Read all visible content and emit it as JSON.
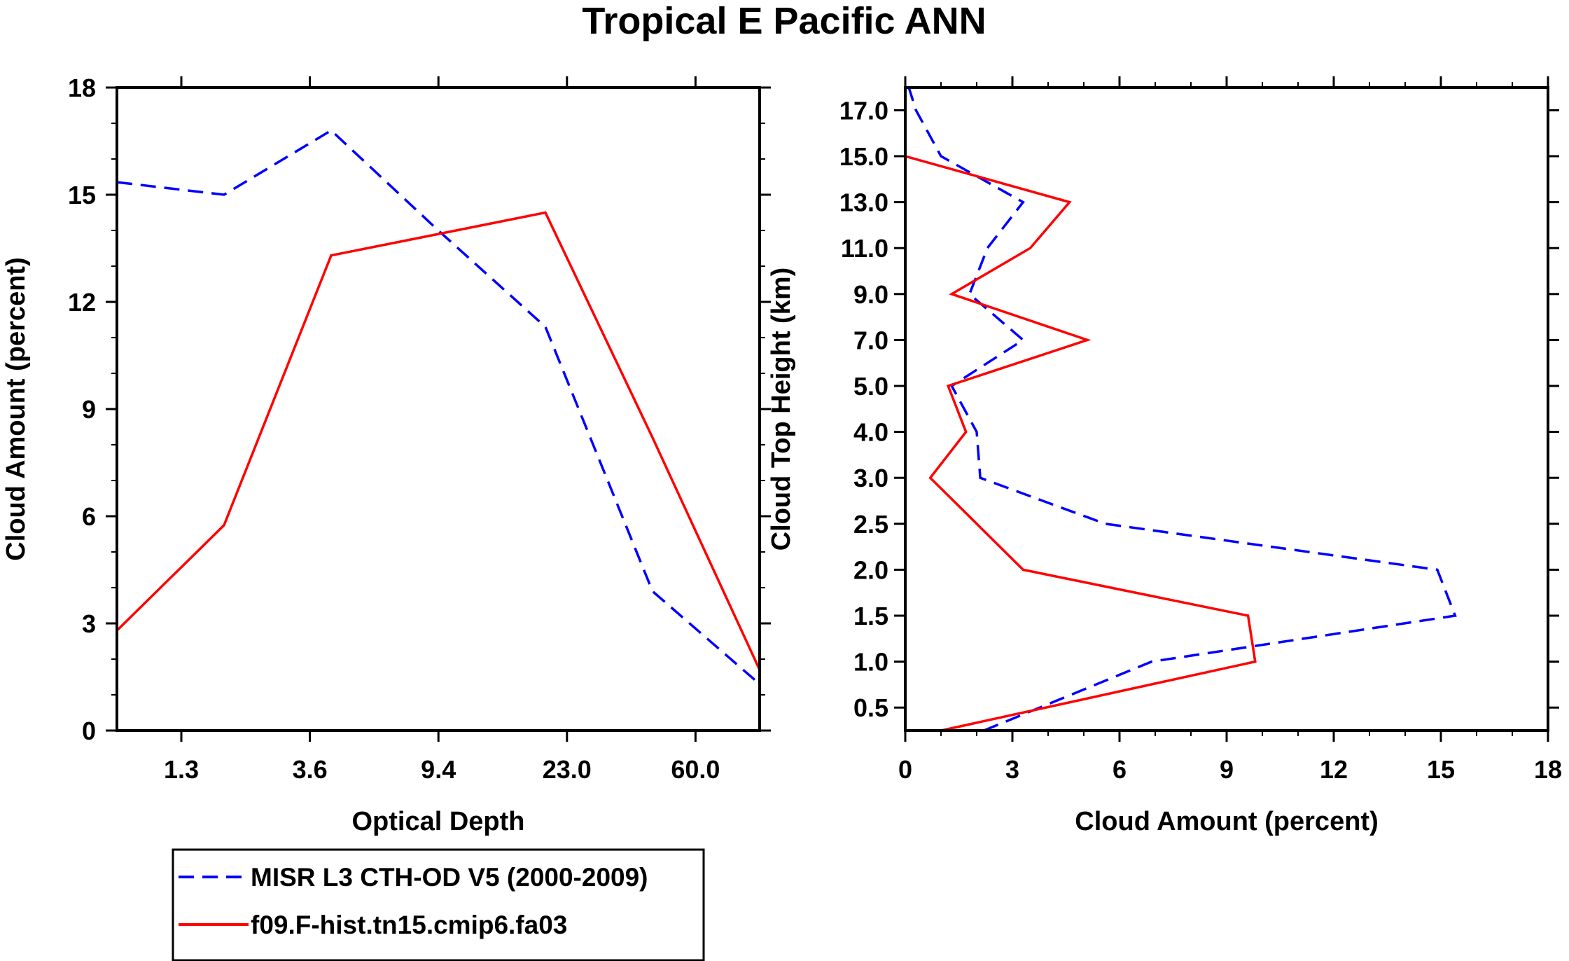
{
  "chart_data": [
    {
      "type": "line",
      "title": "Tropical E Pacific ANN",
      "xlabel": "Optical Depth",
      "ylabel": "Cloud Amount (percent)",
      "ylim": [
        0,
        18
      ],
      "yticks": [
        "0",
        "3",
        "6",
        "9",
        "12",
        "15",
        "18"
      ],
      "xticks": [
        "1.3",
        "3.6",
        "9.4",
        "23.0",
        "60.0"
      ],
      "x_bins": 7,
      "series": [
        {
          "name": "MISR L3 CTH-OD V5 (2000-2009)",
          "color": "#0000ff",
          "dash": "dashed",
          "x": [
            0,
            1,
            2,
            3,
            4,
            5,
            6
          ],
          "values": [
            15.35,
            15.0,
            16.8,
            14.0,
            11.3,
            3.9,
            1.3
          ]
        },
        {
          "name": "f09.F-hist.tn15.cmip6.fa03",
          "color": "#ff0000",
          "dash": "solid",
          "x": [
            0,
            1,
            2,
            3,
            4,
            5,
            6
          ],
          "values": [
            2.8,
            5.75,
            13.3,
            13.9,
            14.5,
            8.2,
            1.7
          ]
        }
      ]
    },
    {
      "type": "line",
      "xlabel": "Cloud Amount (percent)",
      "ylabel": "Cloud Top Height (km)",
      "xlim": [
        0,
        18
      ],
      "xticks": [
        "0",
        "3",
        "6",
        "9",
        "12",
        "15",
        "18"
      ],
      "yticks": [
        "0.5",
        "1.0",
        "1.5",
        "2.0",
        "2.5",
        "3.0",
        "4.0",
        "5.0",
        "7.0",
        "9.0",
        "11.0",
        "13.0",
        "15.0",
        "17.0"
      ],
      "height_levels": 15,
      "series": [
        {
          "name": "MISR L3 CTH-OD V5 (2000-2009)",
          "color": "#0000ff",
          "dash": "dashed",
          "level": [
            0,
            1,
            2,
            3,
            4,
            5,
            6,
            7,
            8,
            9,
            10,
            11,
            12,
            13,
            14
          ],
          "values": [
            2.2,
            6.9,
            15.4,
            14.9,
            5.6,
            2.1,
            2.0,
            1.3,
            3.3,
            1.8,
            2.3,
            3.3,
            1.0,
            0.3,
            0.1
          ]
        },
        {
          "name": "f09.F-hist.tn15.cmip6.fa03",
          "color": "#ff0000",
          "dash": "solid",
          "level": [
            0,
            1,
            2,
            3,
            4,
            5,
            6,
            7,
            8,
            9,
            10,
            11,
            12,
            13,
            14
          ],
          "values": [
            1.0,
            9.8,
            9.6,
            3.3,
            2.0,
            0.7,
            1.7,
            1.2,
            5.1,
            1.3,
            3.5,
            4.6,
            0.0,
            0.0,
            0.0
          ]
        }
      ]
    }
  ],
  "legend": {
    "entries": [
      "MISR L3 CTH-OD V5 (2000-2009)",
      "f09.F-hist.tn15.cmip6.fa03"
    ]
  }
}
